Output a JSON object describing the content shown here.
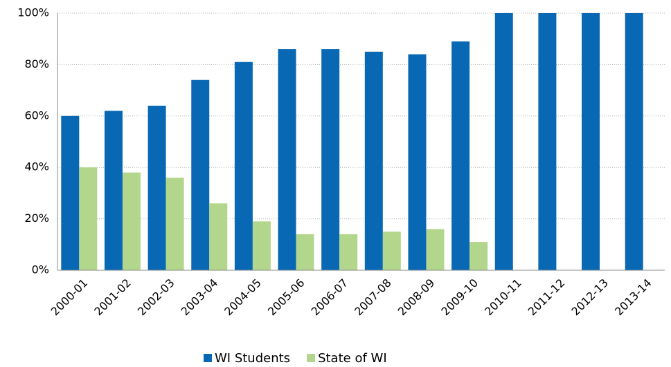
{
  "chart_data": {
    "type": "bar",
    "categories": [
      "2000-01",
      "2001-02",
      "2002-03",
      "2003-04",
      "2004-05",
      "2005-06",
      "2006-07",
      "2007-08",
      "2008-09",
      "2009-10",
      "2010-11",
      "2011-12",
      "2012-13",
      "2013-14"
    ],
    "series": [
      {
        "name": "WI Students",
        "color": "#0868b4",
        "values": [
          60,
          62,
          64,
          74,
          81,
          86,
          86,
          85,
          84,
          89,
          100,
          100,
          100,
          100
        ]
      },
      {
        "name": "State of WI",
        "color": "#b2d68b",
        "values": [
          40,
          38,
          36,
          26,
          19,
          14,
          14,
          15,
          16,
          11,
          null,
          null,
          null,
          null
        ]
      }
    ],
    "ylim": [
      0,
      100
    ],
    "yticks": [
      {
        "value": 0,
        "label": "0%"
      },
      {
        "value": 20,
        "label": "20%"
      },
      {
        "value": 40,
        "label": "40%"
      },
      {
        "value": 60,
        "label": "60%"
      },
      {
        "value": 80,
        "label": "80%"
      },
      {
        "value": 100,
        "label": "100%"
      }
    ],
    "grid": true,
    "legend": "bottom"
  }
}
